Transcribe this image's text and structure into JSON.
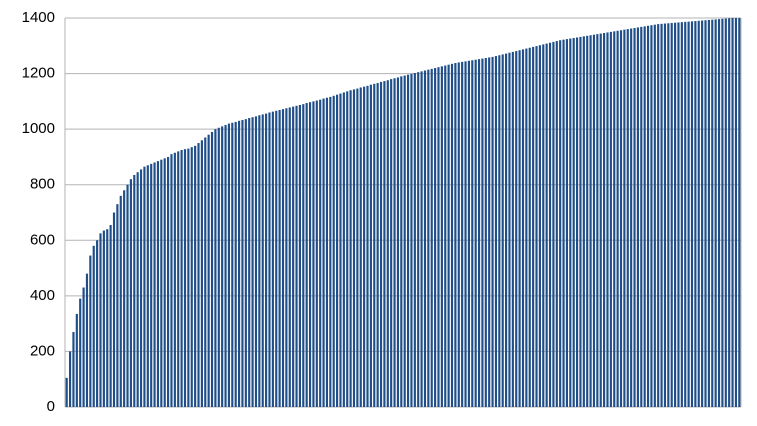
{
  "chart_data": {
    "type": "bar",
    "color": "#1f4e89",
    "grid": true,
    "ylim": [
      0,
      1400
    ],
    "yticks": [
      0,
      200,
      400,
      600,
      800,
      1000,
      1200,
      1400
    ],
    "values": [
      105,
      200,
      270,
      335,
      390,
      430,
      480,
      545,
      580,
      600,
      625,
      635,
      640,
      655,
      700,
      730,
      760,
      780,
      800,
      820,
      835,
      845,
      855,
      865,
      870,
      875,
      880,
      885,
      890,
      895,
      900,
      910,
      915,
      920,
      925,
      928,
      930,
      935,
      940,
      950,
      960,
      970,
      980,
      990,
      1000,
      1005,
      1010,
      1015,
      1020,
      1023,
      1026,
      1030,
      1033,
      1036,
      1040,
      1043,
      1046,
      1050,
      1053,
      1056,
      1060,
      1063,
      1066,
      1069,
      1072,
      1075,
      1078,
      1081,
      1084,
      1087,
      1090,
      1094,
      1097,
      1100,
      1103,
      1106,
      1110,
      1113,
      1116,
      1120,
      1124,
      1128,
      1132,
      1136,
      1140,
      1143,
      1146,
      1150,
      1153,
      1156,
      1160,
      1163,
      1166,
      1170,
      1173,
      1176,
      1180,
      1183,
      1186,
      1190,
      1193,
      1196,
      1199,
      1202,
      1205,
      1208,
      1211,
      1214,
      1217,
      1220,
      1223,
      1226,
      1229,
      1232,
      1235,
      1238,
      1240,
      1242,
      1244,
      1246,
      1248,
      1250,
      1252,
      1254,
      1256,
      1258,
      1260,
      1263,
      1266,
      1269,
      1272,
      1275,
      1278,
      1281,
      1284,
      1287,
      1290,
      1293,
      1296,
      1299,
      1302,
      1305,
      1308,
      1311,
      1314,
      1317,
      1320,
      1322,
      1324,
      1326,
      1328,
      1330,
      1332,
      1334,
      1336,
      1338,
      1340,
      1342,
      1344,
      1346,
      1348,
      1350,
      1352,
      1354,
      1356,
      1358,
      1360,
      1362,
      1364,
      1366,
      1368,
      1370,
      1372,
      1374,
      1376,
      1378,
      1379,
      1380,
      1381,
      1382,
      1383,
      1384,
      1385,
      1386,
      1387,
      1388,
      1389,
      1390,
      1391,
      1392,
      1393,
      1394,
      1395,
      1396,
      1397,
      1398,
      1399,
      1400,
      1400,
      1400
    ]
  }
}
